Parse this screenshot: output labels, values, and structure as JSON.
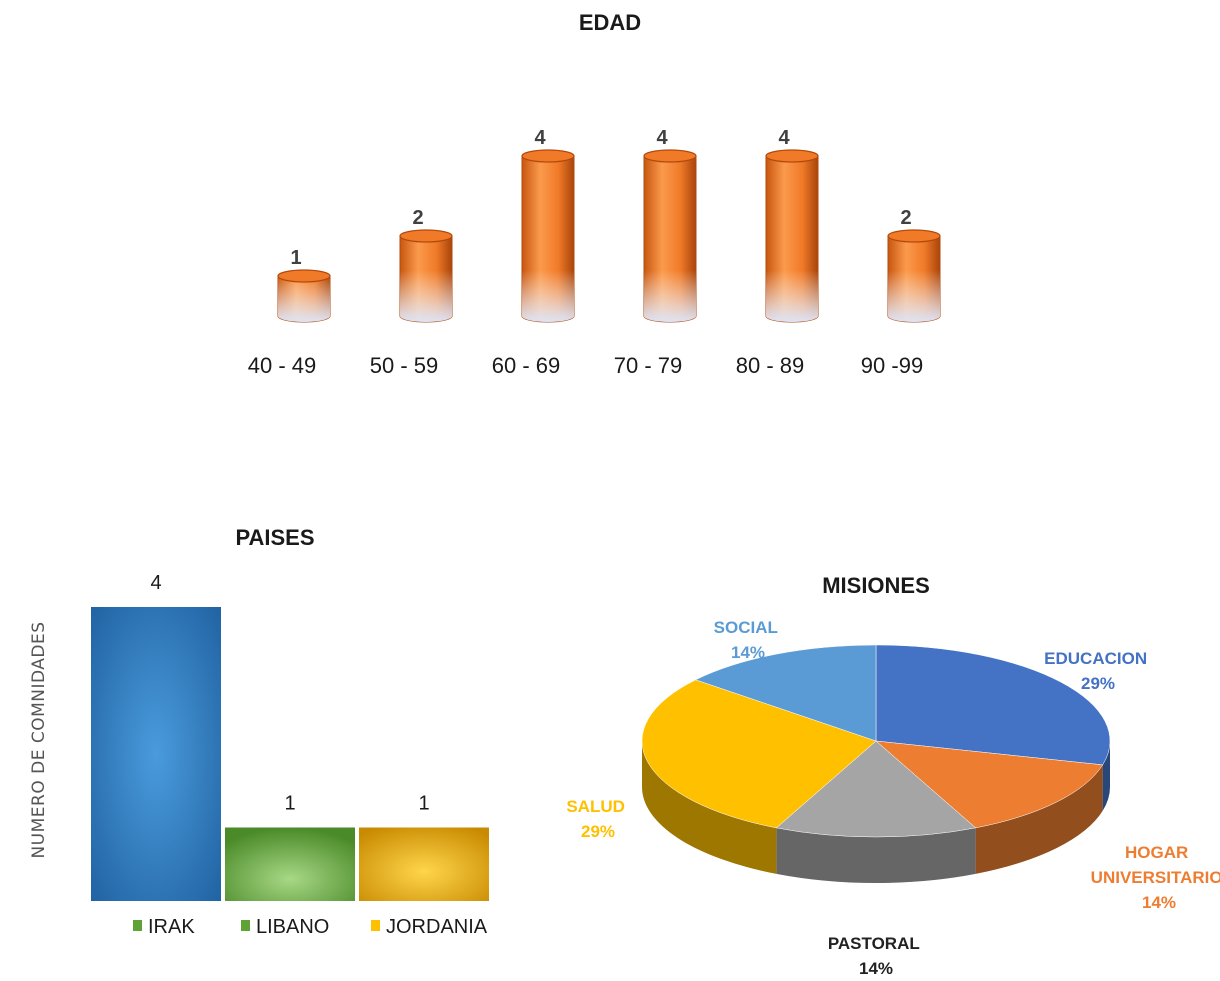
{
  "chart_data": [
    {
      "type": "bar",
      "title": "EDAD",
      "categories": [
        "40 - 49",
        "50 - 59",
        "60 - 69",
        "70 - 79",
        "80 - 89",
        "90 -99"
      ],
      "values": [
        1,
        2,
        4,
        4,
        4,
        2
      ],
      "ylim": [
        0,
        4
      ],
      "grid": false,
      "colors": {
        "bar": "#f07a28",
        "bar_light": "#fb9a4c",
        "bar_dark": "#b24a0c",
        "base": "#dde3f5"
      }
    },
    {
      "type": "bar",
      "title": "PAISES",
      "ylabel": "NUMERO DE COMNIDADES",
      "categories": [
        "IRAK",
        "LIBANO",
        "JORDANIA"
      ],
      "values": [
        4,
        1,
        1
      ],
      "ylim": [
        0,
        4
      ],
      "legend": "bottom",
      "colors": [
        "#2e75b6",
        "#5fa336",
        "#ffc000"
      ],
      "legend_colors": [
        "#5fa336",
        "#5fa336",
        "#ffc000"
      ]
    },
    {
      "type": "pie",
      "title": "MISIONES",
      "labels": [
        "EDUCACION",
        "HOGAR UNIVERSITARIO",
        "PASTORAL",
        "SALUD",
        "SOCIAL"
      ],
      "label_lines": [
        [
          "EDUCACION"
        ],
        [
          "HOGAR",
          "UNIVERSITARIO"
        ],
        [
          "PASTORAL"
        ],
        [
          "SALUD"
        ],
        [
          "SOCIAL"
        ]
      ],
      "values": [
        29,
        14,
        14,
        29,
        14
      ],
      "percent_labels": [
        "29%",
        "14%",
        "14%",
        "29%",
        "14%"
      ],
      "colors": [
        "#4472c4",
        "#ed7d31",
        "#a5a5a5",
        "#ffc000",
        "#5b9bd5"
      ],
      "label_colors": [
        "#4472c4",
        "#ed7d31",
        "#222222",
        "#ffc000",
        "#5b9bd5"
      ]
    }
  ]
}
